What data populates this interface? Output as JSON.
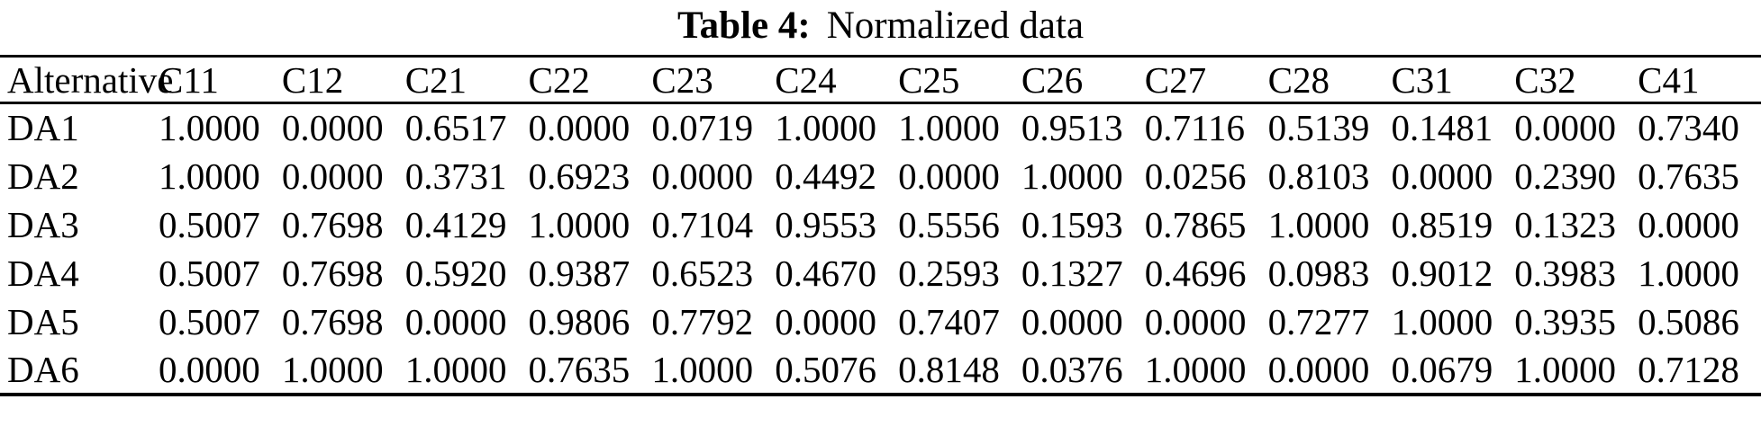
{
  "caption": {
    "label": "Table 4:",
    "text": "Normalized data"
  },
  "table": {
    "columns": [
      "Alternative",
      "C11",
      "C12",
      "C21",
      "C22",
      "C23",
      "C24",
      "C25",
      "C26",
      "C27",
      "C28",
      "C31",
      "C32",
      "C41"
    ],
    "rows": [
      {
        "alternative": "DA1",
        "values": [
          "1.0000",
          "0.0000",
          "0.6517",
          "0.0000",
          "0.0719",
          "1.0000",
          "1.0000",
          "0.9513",
          "0.7116",
          "0.5139",
          "0.1481",
          "0.0000",
          "0.7340"
        ]
      },
      {
        "alternative": "DA2",
        "values": [
          "1.0000",
          "0.0000",
          "0.3731",
          "0.6923",
          "0.0000",
          "0.4492",
          "0.0000",
          "1.0000",
          "0.0256",
          "0.8103",
          "0.0000",
          "0.2390",
          "0.7635"
        ]
      },
      {
        "alternative": "DA3",
        "values": [
          "0.5007",
          "0.7698",
          "0.4129",
          "1.0000",
          "0.7104",
          "0.9553",
          "0.5556",
          "0.1593",
          "0.7865",
          "1.0000",
          "0.8519",
          "0.1323",
          "0.0000"
        ]
      },
      {
        "alternative": "DA4",
        "values": [
          "0.5007",
          "0.7698",
          "0.5920",
          "0.9387",
          "0.6523",
          "0.4670",
          "0.2593",
          "0.1327",
          "0.4696",
          "0.0983",
          "0.9012",
          "0.3983",
          "1.0000"
        ]
      },
      {
        "alternative": "DA5",
        "values": [
          "0.5007",
          "0.7698",
          "0.0000",
          "0.9806",
          "0.7792",
          "0.0000",
          "0.7407",
          "0.0000",
          "0.0000",
          "0.7277",
          "1.0000",
          "0.3935",
          "0.5086"
        ]
      },
      {
        "alternative": "DA6",
        "values": [
          "0.0000",
          "1.0000",
          "1.0000",
          "0.7635",
          "1.0000",
          "0.5076",
          "0.8148",
          "0.0376",
          "1.0000",
          "0.0000",
          "0.0679",
          "1.0000",
          "0.7128"
        ]
      }
    ]
  },
  "colors": {
    "text": "#000000",
    "background": "#ffffff",
    "rule": "#000000"
  }
}
